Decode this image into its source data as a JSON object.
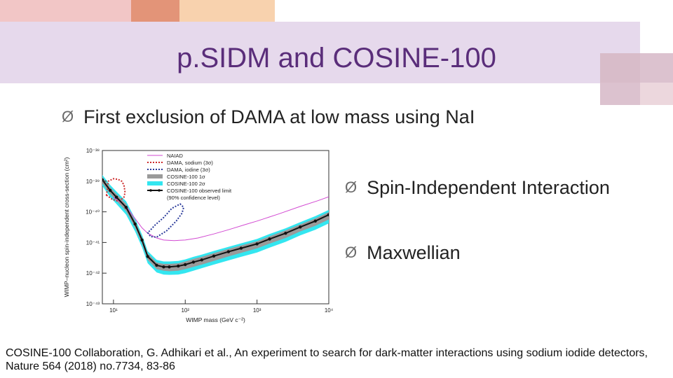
{
  "slide": {
    "title": "p.SIDM and COSINE-100",
    "bullet_main": "First exclusion of DAMA at low mass using NaI",
    "bullet_right_1": "Spin-Independent Interaction",
    "bullet_right_2": "Maxwellian",
    "citation": "COSINE-100 Collaboration, G. Adhikari et al., An experiment to search for dark-matter interactions using sodium iodide detectors, Nature 564 (2018) no.7734, 83-86",
    "bullet_arrow": "Ø"
  },
  "colors": {
    "title_band": "#e6d9ec",
    "title_text": "#5a2d7a",
    "deco_pink": "#e8a8a8",
    "deco_peach": "#f6c9a0",
    "deco_salmon": "#e39478",
    "deco_lilac": "#d9b9c9"
  },
  "chart_data": {
    "type": "line",
    "xlabel": "WIMP mass (GeV c⁻²)",
    "ylabel": "WIMP–nucleon spin-independent cross-section (cm²)",
    "x_scale": "log",
    "y_scale": "log",
    "xlim": [
      7,
      10000
    ],
    "ylim": [
      1e-43,
      1e-38
    ],
    "x_ticks": [
      {
        "label": "10¹",
        "value": 10
      },
      {
        "label": "10²",
        "value": 100
      },
      {
        "label": "10³",
        "value": 1000
      },
      {
        "label": "10⁴",
        "value": 10000
      }
    ],
    "y_ticks": [
      {
        "label": "10⁻³⁸",
        "value": 1e-38
      },
      {
        "label": "10⁻³⁹",
        "value": 1e-39
      },
      {
        "label": "10⁻⁴⁰",
        "value": 1e-40
      },
      {
        "label": "10⁻⁴¹",
        "value": 1e-41
      },
      {
        "label": "10⁻⁴²",
        "value": 1e-42
      },
      {
        "label": "10⁻⁴³",
        "value": 1e-43
      }
    ],
    "legend": {
      "placement": "top-right",
      "entries": [
        {
          "label": "NAIAD",
          "style": "solid",
          "color": "#d24ad2"
        },
        {
          "label": "DAMA, sodium (3σ)",
          "style": "dashed",
          "color": "#cc2a2a"
        },
        {
          "label": "DAMA, iodine (3σ)",
          "style": "dashed",
          "color": "#2a3a9a"
        },
        {
          "label": "COSINE-100 1σ",
          "style": "band",
          "color": "#9a9a9a"
        },
        {
          "label": "COSINE-100 2σ",
          "style": "band",
          "color": "#33e6f0"
        },
        {
          "label": "COSINE-100 observed limit\n(90% confidence level)",
          "style": "line-dots",
          "color": "#111111"
        }
      ]
    },
    "series": [
      {
        "name": "COSINE-100 observed limit\n(90% confidence level)",
        "x": [
          7,
          9,
          11,
          15,
          20,
          25,
          30,
          40,
          50,
          60,
          80,
          100,
          130,
          170,
          250,
          400,
          600,
          1000,
          1500,
          2500,
          4000,
          6500,
          10000
        ],
        "y": [
          1.1e-39,
          5e-40,
          3e-40,
          1.4e-40,
          4e-41,
          1.2e-41,
          3.5e-42,
          1.8e-42,
          1.6e-42,
          1.6e-42,
          1.7e-42,
          1.9e-42,
          2.3e-42,
          2.7e-42,
          3.6e-42,
          5e-42,
          6.5e-42,
          9e-42,
          1.3e-41,
          2e-41,
          3.2e-41,
          5e-41,
          8e-41
        ],
        "color": "#111111"
      },
      {
        "name": "COSINE-100 2σ",
        "x": [
          7,
          9,
          11,
          15,
          20,
          25,
          30,
          40,
          50,
          60,
          80,
          100,
          130,
          170,
          250,
          400,
          600,
          1000,
          1500,
          2500,
          4000,
          6500,
          10000
        ],
        "y_low": [
          7e-40,
          3e-40,
          1.8e-40,
          8e-41,
          2.3e-41,
          7e-42,
          2.1e-42,
          1.05e-42,
          9e-43,
          8.8e-43,
          9e-43,
          1e-42,
          1.2e-42,
          1.45e-42,
          1.9e-42,
          2.6e-42,
          3.4e-42,
          4.7e-42,
          6.8e-42,
          1.05e-41,
          1.7e-41,
          2.6e-41,
          4.2e-41
        ],
        "y_high": [
          1.6e-39,
          7.5e-40,
          4.6e-40,
          2.2e-40,
          6e-41,
          1.8e-41,
          5.2e-42,
          2.7e-42,
          2.4e-42,
          2.4e-42,
          2.5e-42,
          2.8e-42,
          3.4e-42,
          4e-42,
          5.3e-42,
          7.2e-42,
          9.4e-42,
          1.3e-41,
          1.9e-41,
          2.9e-41,
          4.6e-41,
          7.2e-41,
          1.15e-40
        ],
        "color": "#33e6f0"
      },
      {
        "name": "COSINE-100 1σ",
        "x": [
          7,
          9,
          11,
          15,
          20,
          25,
          30,
          40,
          50,
          60,
          80,
          100,
          130,
          170,
          250,
          400,
          600,
          1000,
          1500,
          2500,
          4000,
          6500,
          10000
        ],
        "y_low": [
          8.5e-40,
          3.8e-40,
          2.3e-40,
          1.05e-40,
          3e-41,
          9e-42,
          2.7e-42,
          1.35e-42,
          1.2e-42,
          1.15e-42,
          1.2e-42,
          1.35e-42,
          1.6e-42,
          1.9e-42,
          2.5e-42,
          3.5e-42,
          4.6e-42,
          6.4e-42,
          9.2e-42,
          1.4e-41,
          2.3e-41,
          3.5e-41,
          5.6e-41
        ],
        "y_high": [
          1.35e-39,
          6.3e-40,
          3.8e-40,
          1.8e-40,
          5e-41,
          1.5e-41,
          4.4e-42,
          2.2e-42,
          2e-42,
          2e-42,
          2.1e-42,
          2.4e-42,
          2.9e-42,
          3.4e-42,
          4.5e-42,
          6.2e-42,
          8e-42,
          1.1e-41,
          1.6e-41,
          2.5e-41,
          3.9e-41,
          6.1e-41,
          9.8e-41
        ],
        "color": "#9a9a9a"
      },
      {
        "name": "NAIAD",
        "x": [
          10,
          12,
          15,
          20,
          25,
          30,
          40,
          50,
          70,
          100,
          150,
          250,
          400,
          700,
          1000,
          2000,
          4000,
          7000,
          10000
        ],
        "y": [
          3e-40,
          2.2e-40,
          1.5e-40,
          6e-41,
          3e-41,
          2e-41,
          1.4e-41,
          1.2e-41,
          1.15e-41,
          1.2e-41,
          1.4e-41,
          1.9e-41,
          2.6e-41,
          3.9e-41,
          5e-41,
          8.5e-41,
          1.5e-40,
          2.3e-40,
          3.1e-40
        ],
        "color": "#d24ad2"
      },
      {
        "name": "DAMA, sodium (3σ)",
        "x": [
          8,
          9.5,
          11,
          12.5,
          14,
          14.5,
          14,
          13,
          11.5,
          10,
          8.5,
          8
        ],
        "y": [
          3.5e-40,
          2.6e-40,
          2.3e-40,
          2.4e-40,
          3e-40,
          4.3e-40,
          7.5e-40,
          1e-39,
          1.15e-39,
          1.2e-39,
          1e-39,
          3.5e-40
        ],
        "color": "#cc2a2a"
      },
      {
        "name": "DAMA, iodine (3σ)",
        "x": [
          30,
          33,
          40,
          55,
          75,
          90,
          95,
          85,
          65,
          50,
          38,
          32,
          30
        ],
        "y": [
          2.1e-41,
          1.55e-41,
          1.5e-41,
          2.4e-41,
          5e-41,
          9e-41,
          1.4e-40,
          1.8e-40,
          1.3e-40,
          6.5e-41,
          3.7e-41,
          2.4e-41,
          2.1e-41
        ],
        "color": "#2a3a9a"
      }
    ]
  }
}
